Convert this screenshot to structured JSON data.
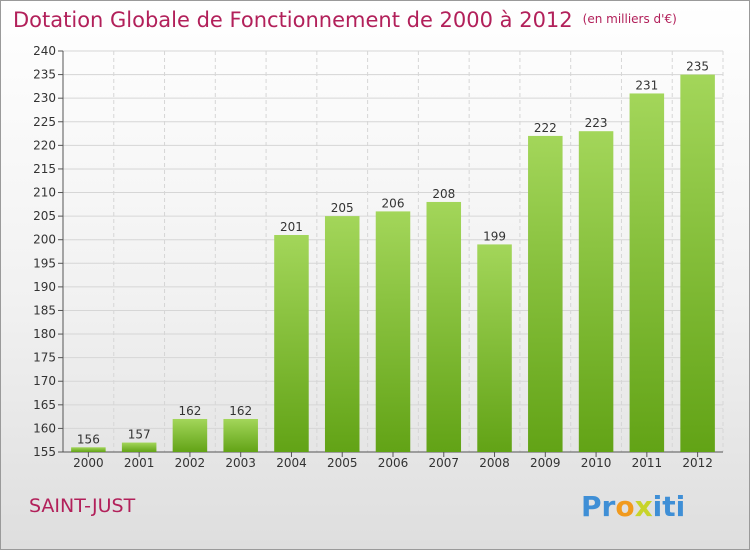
{
  "title": "Dotation Globale de Fonctionnement de 2000 à 2012",
  "unit": "(en milliers d'€)",
  "commune": "SAINT-JUST",
  "logo": {
    "text": "Proxiti",
    "letters": [
      {
        "ch": "P",
        "color": "#3f8fd6"
      },
      {
        "ch": "r",
        "color": "#3f8fd6"
      },
      {
        "ch": "o",
        "color": "#f19a1e"
      },
      {
        "ch": "x",
        "color": "#c8d42a"
      },
      {
        "ch": "i",
        "color": "#3f8fd6"
      },
      {
        "ch": "t",
        "color": "#3f8fd6"
      },
      {
        "ch": "i",
        "color": "#3f8fd6"
      }
    ]
  },
  "colors": {
    "bar_top": "#a3d65a",
    "bar_bottom": "#62a316",
    "title": "#b2205a"
  },
  "chart_data": {
    "type": "bar",
    "categories": [
      "2000",
      "2001",
      "2002",
      "2003",
      "2004",
      "2005",
      "2006",
      "2007",
      "2008",
      "2009",
      "2010",
      "2011",
      "2012"
    ],
    "values": [
      156,
      157,
      162,
      162,
      201,
      205,
      206,
      208,
      199,
      222,
      223,
      231,
      235
    ],
    "ylim": [
      155,
      240
    ],
    "yticks": [
      155,
      160,
      165,
      170,
      175,
      180,
      185,
      190,
      195,
      200,
      205,
      210,
      215,
      220,
      225,
      230,
      235,
      240
    ],
    "grid": true
  }
}
